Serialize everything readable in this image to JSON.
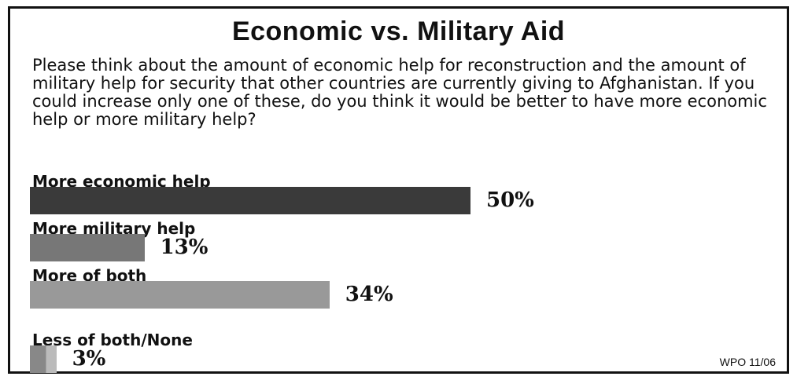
{
  "chart_data": {
    "type": "bar",
    "orientation": "horizontal",
    "title": "Economic vs. Military Aid",
    "question": "Please think about the amount of economic help for reconstruction and the amount of military help for security that other countries are currently giving to Afghanistan.  If you could increase only one of these, do you think it would be better to have more economic help or more military help?",
    "categories": [
      "More economic help",
      "More military help",
      "More of both",
      "Less of both/None"
    ],
    "values": [
      50,
      13,
      34,
      3
    ],
    "value_labels": [
      "50%",
      "13%",
      "34%",
      "3%"
    ],
    "unit": "%",
    "bar_colors": [
      "#3a3a3a",
      "#777777",
      "#999999",
      "#999999"
    ],
    "xlim": [
      0,
      100
    ],
    "grid": false,
    "legend": "none",
    "source": "WPO 11/06"
  }
}
